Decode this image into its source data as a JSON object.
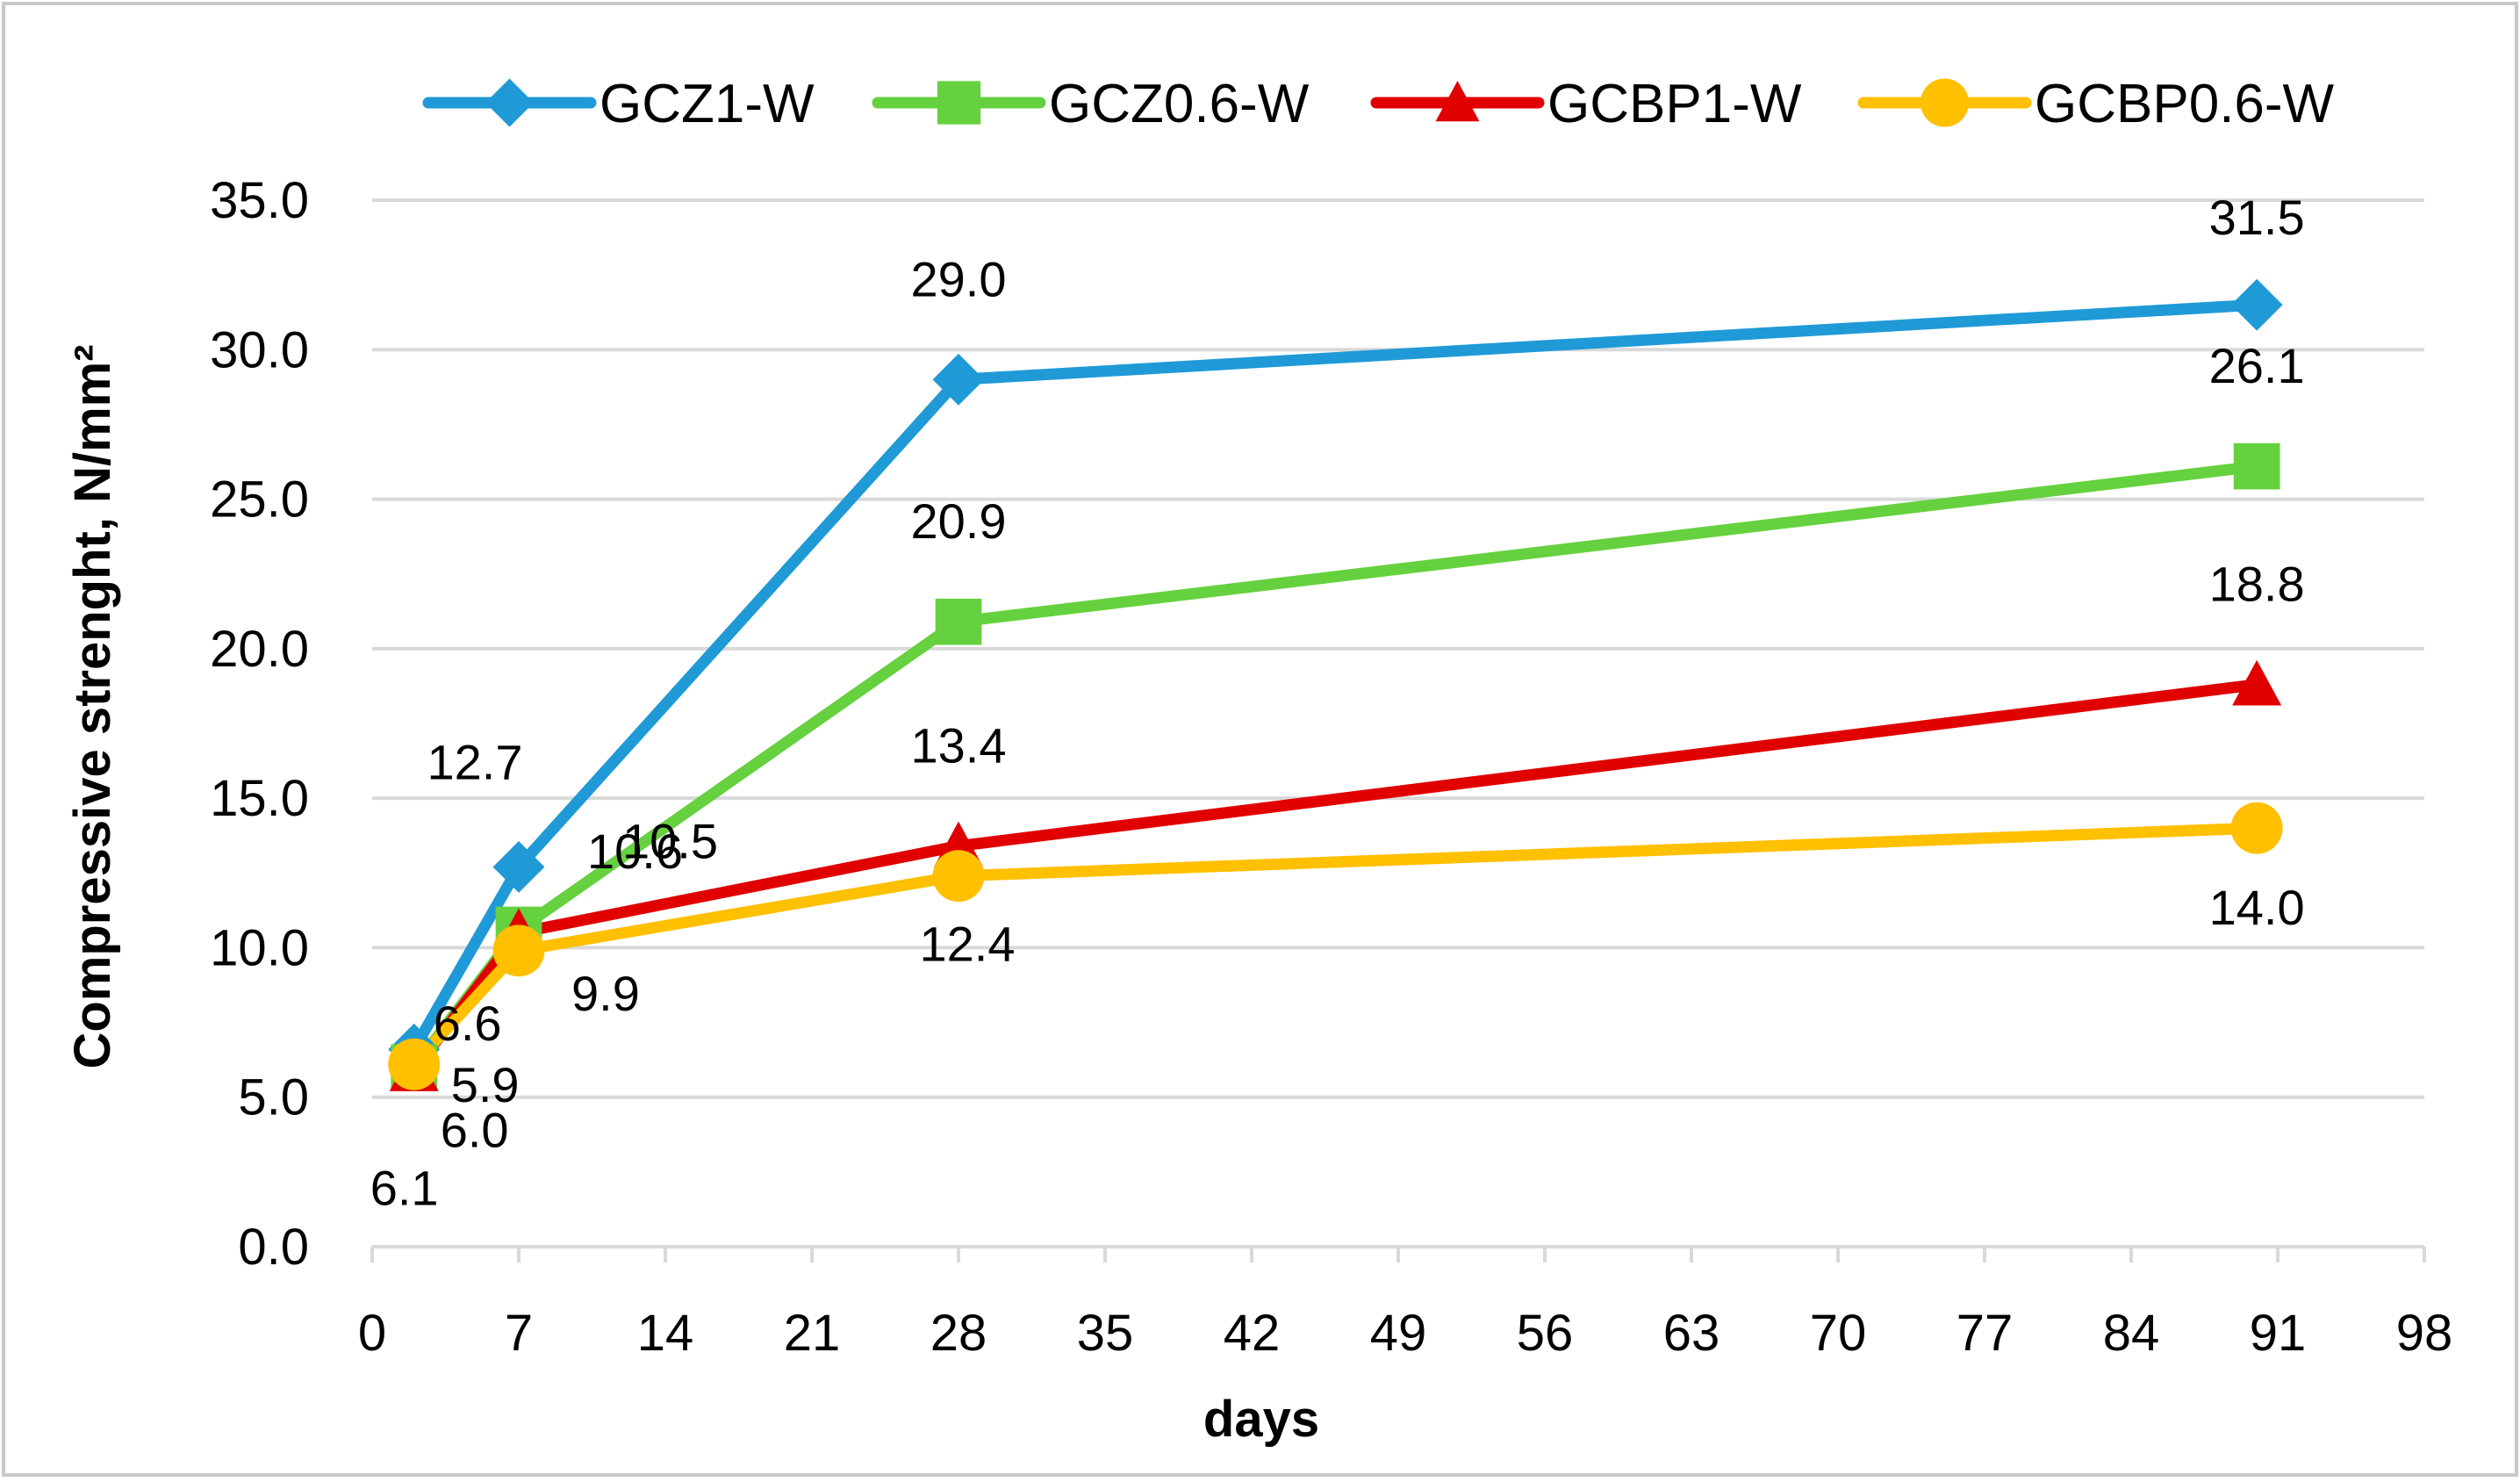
{
  "chart_data": {
    "type": "line",
    "title": "",
    "xlabel": "days",
    "ylabel": "Compressive strenght, N/mm²",
    "xlim": [
      0,
      98
    ],
    "ylim": [
      0,
      35
    ],
    "x_ticks": [
      "0",
      "7",
      "14",
      "21",
      "28",
      "35",
      "42",
      "49",
      "56",
      "63",
      "70",
      "77",
      "84",
      "91",
      "98"
    ],
    "y_ticks": [
      "0.0",
      "5.0",
      "10.0",
      "15.0",
      "20.0",
      "25.0",
      "30.0",
      "35.0"
    ],
    "grid": true,
    "legend_position": "top",
    "x": [
      2,
      7,
      28,
      90
    ],
    "series": [
      {
        "name": "GCZ1-W",
        "color": "#1f9ad6",
        "marker": "diamond",
        "values": [
          6.6,
          12.7,
          29.0,
          31.5
        ],
        "labels": [
          "6.6",
          "12.7",
          "29.0",
          "31.5"
        ]
      },
      {
        "name": "GCZ0.6-W",
        "color": "#66d13f",
        "marker": "square",
        "values": [
          6.0,
          10.6,
          20.9,
          26.1
        ],
        "labels": [
          "6.0",
          "10.6",
          "20.9",
          "26.1"
        ]
      },
      {
        "name": "GCBP1-W",
        "color": "#e00000",
        "marker": "triangle",
        "values": [
          5.9,
          10.5,
          13.4,
          18.8
        ],
        "labels": [
          "5.9",
          "10.5",
          "13.4",
          "18.8"
        ]
      },
      {
        "name": "GCBP0.6-W",
        "color": "#ffc000",
        "marker": "circle",
        "values": [
          6.1,
          9.9,
          12.4,
          14.0
        ],
        "labels": [
          "6.1",
          "9.9",
          "12.4",
          "14.0"
        ]
      }
    ]
  }
}
